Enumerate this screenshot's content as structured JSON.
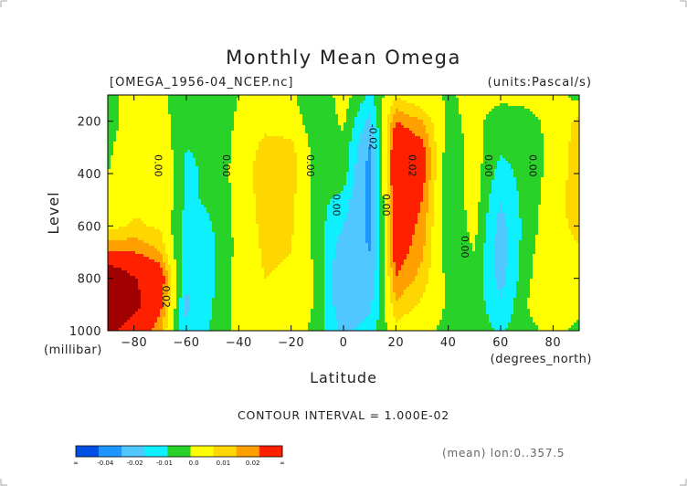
{
  "chart_data": {
    "type": "heatmap",
    "title": "Monthly Mean Omega",
    "file_label": "[OMEGA_1956-04_NCEP.nc]",
    "units_label": "(units:Pascal/s)",
    "xlabel": "Latitude",
    "x_units": "(degrees_north)",
    "ylabel": "Level",
    "y_units": "(millibar)",
    "xlim": [
      -90,
      90
    ],
    "ylim": [
      1000,
      100
    ],
    "x_ticks": [
      -80,
      -60,
      -40,
      -20,
      0,
      20,
      40,
      60,
      80
    ],
    "y_ticks": [
      1000,
      800,
      600,
      400,
      200
    ],
    "contour_interval_text": "CONTOUR INTERVAL = 1.000E-02",
    "footer_text": "(mean) lon:0..357.5",
    "contour_labels": [
      {
        "text": "0.00",
        "lat": -72,
        "level": 370
      },
      {
        "text": "0.00",
        "lat": -46,
        "level": 370
      },
      {
        "text": "0.00",
        "lat": -14,
        "level": 370
      },
      {
        "text": "0.00",
        "lat": -4,
        "level": 520
      },
      {
        "text": "-0.02",
        "lat": 10,
        "level": 260
      },
      {
        "text": "0.00",
        "lat": 15,
        "level": 520
      },
      {
        "text": "0.02",
        "lat": 25,
        "level": 370
      },
      {
        "text": "0.00",
        "lat": 45,
        "level": 680
      },
      {
        "text": "0.00",
        "lat": 54,
        "level": 370
      },
      {
        "text": "0.00",
        "lat": 71,
        "level": 370
      },
      {
        "text": "0.02",
        "lat": -69,
        "level": 870
      }
    ],
    "colorbar": {
      "colors": [
        "#0050e6",
        "#1e96ff",
        "#50c8ff",
        "#0ff0ff",
        "#28d228",
        "#ffff00",
        "#ffd700",
        "#ffa000",
        "#ff2000"
      ],
      "labels": [
        "∞",
        "-0.04",
        "-0.02",
        "-0.01",
        "0.0",
        "0.01",
        "0.02",
        "∞"
      ]
    },
    "lat_grid": [
      -90,
      -80,
      -70,
      -60,
      -50,
      -40,
      -30,
      -20,
      -10,
      0,
      10,
      20,
      30,
      40,
      50,
      60,
      70,
      80,
      90
    ],
    "level_grid": [
      100,
      200,
      300,
      400,
      500,
      600,
      700,
      800,
      900,
      1000
    ],
    "values": [
      [
        0.0,
        0.008,
        0.005,
        -0.002,
        -0.001,
        0.003,
        0.006,
        0.004,
        -0.002,
        0.006,
        -0.004,
        0.009,
        0.005,
        0.002,
        0.005,
        0.004,
        0.004,
        0.006,
        0.0
      ],
      [
        0.0,
        0.007,
        0.006,
        -0.002,
        -0.001,
        0.004,
        0.008,
        0.006,
        -0.001,
        0.004,
        -0.012,
        0.02,
        0.015,
        0.002,
        0.004,
        0.001,
        0.002,
        0.004,
        0.012
      ],
      [
        0.002,
        0.007,
        0.008,
        -0.003,
        -0.002,
        0.005,
        0.012,
        0.012,
        -0.001,
        0.002,
        -0.02,
        0.028,
        0.022,
        -0.001,
        0.006,
        -0.002,
        0.001,
        0.004,
        0.014
      ],
      [
        0.003,
        0.007,
        0.01,
        -0.004,
        -0.002,
        0.006,
        0.014,
        0.013,
        -0.001,
        0.001,
        -0.025,
        0.03,
        0.023,
        -0.002,
        0.006,
        -0.006,
        0.0,
        0.005,
        0.014
      ],
      [
        0.005,
        0.008,
        0.01,
        -0.004,
        -0.002,
        0.005,
        0.013,
        0.012,
        -0.001,
        -0.005,
        -0.024,
        0.028,
        0.02,
        -0.002,
        0.006,
        -0.01,
        0.0,
        0.006,
        0.015
      ],
      [
        0.008,
        0.011,
        0.009,
        -0.006,
        -0.003,
        0.005,
        0.012,
        0.011,
        0.0,
        -0.01,
        -0.022,
        0.026,
        0.018,
        -0.002,
        0.005,
        -0.013,
        0.0,
        0.007,
        0.012
      ],
      [
        0.02,
        0.02,
        0.015,
        -0.008,
        -0.004,
        0.005,
        0.011,
        0.01,
        0.001,
        -0.016,
        -0.02,
        0.024,
        0.016,
        -0.001,
        0.003,
        -0.014,
        0.001,
        0.008,
        0.009
      ],
      [
        0.05,
        0.036,
        0.026,
        -0.01,
        -0.004,
        0.006,
        0.01,
        0.009,
        0.002,
        -0.018,
        -0.017,
        0.02,
        0.013,
        0.001,
        0.002,
        -0.013,
        0.002,
        0.008,
        0.006
      ],
      [
        0.05,
        0.04,
        0.022,
        -0.011,
        -0.003,
        0.006,
        0.008,
        0.008,
        0.002,
        -0.017,
        -0.012,
        0.014,
        0.009,
        0.002,
        0.001,
        -0.009,
        0.003,
        0.006,
        0.004
      ],
      [
        0.04,
        0.028,
        0.016,
        -0.01,
        -0.002,
        0.005,
        0.006,
        0.006,
        0.001,
        -0.012,
        -0.007,
        0.008,
        0.005,
        0.001,
        0.001,
        -0.004,
        0.002,
        0.004,
        0.002
      ]
    ]
  }
}
